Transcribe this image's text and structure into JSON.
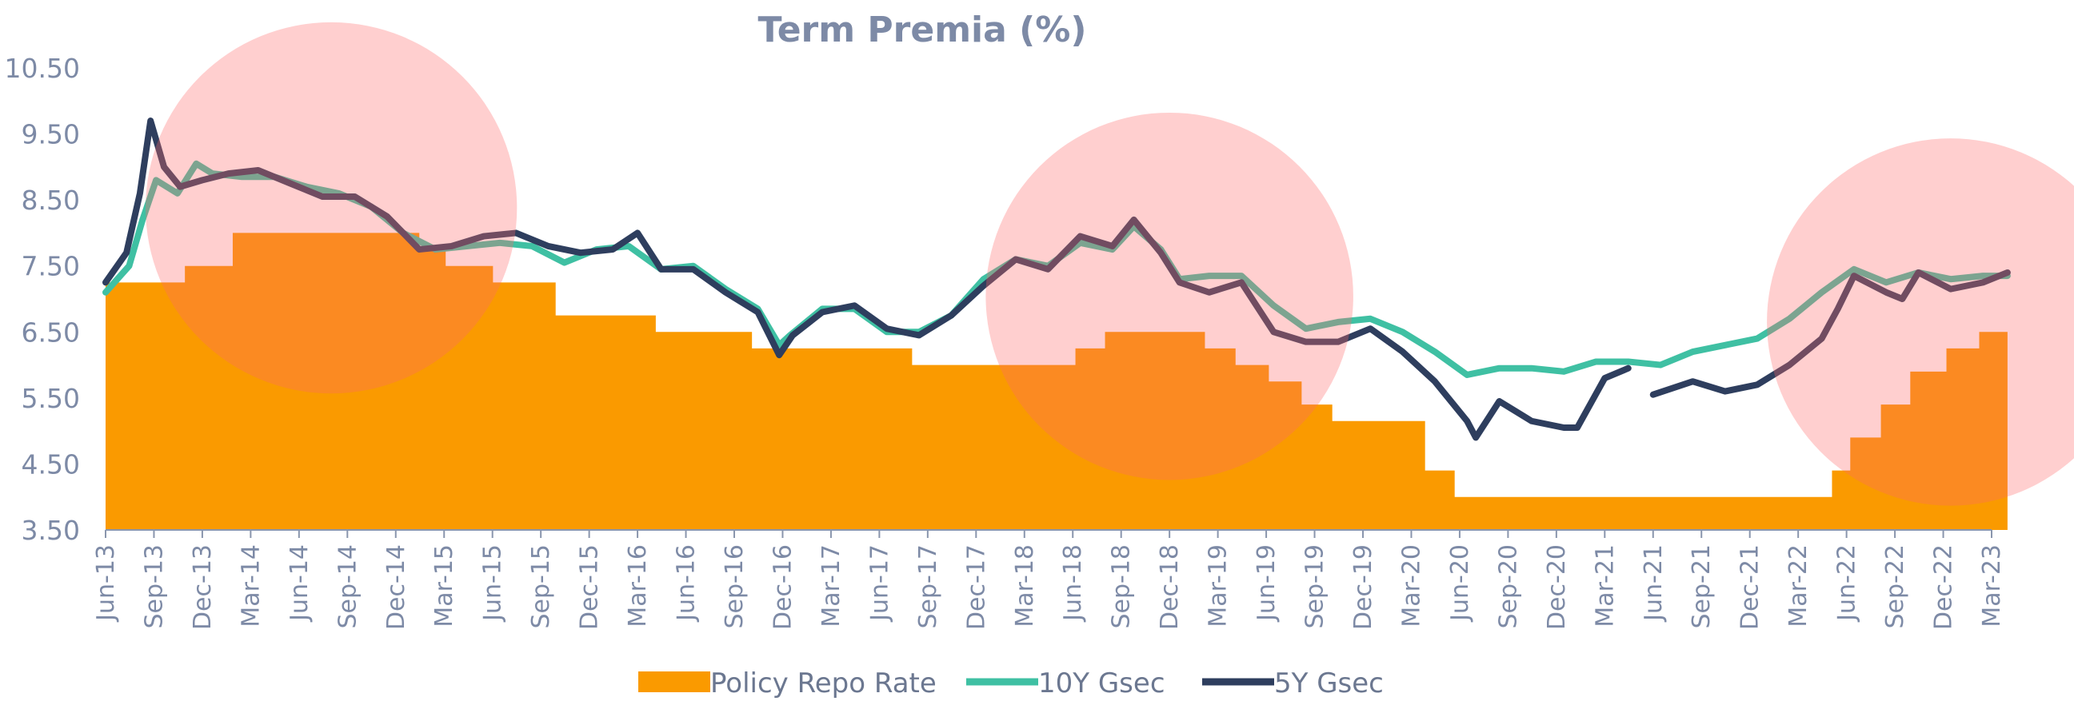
{
  "chart_data": {
    "type": "area",
    "title": "Term Premia (%)",
    "xlabel": "",
    "ylabel": "",
    "ylim": [
      3.5,
      10.5
    ],
    "yticks": [
      "3.50",
      "4.50",
      "5.50",
      "6.50",
      "7.50",
      "8.50",
      "9.50",
      "10.50"
    ],
    "xlim": [
      "2013-06",
      "2023-03"
    ],
    "xticks": [
      "Jun-13",
      "Sep-13",
      "Dec-13",
      "Mar-14",
      "Jun-14",
      "Sep-14",
      "Dec-14",
      "Mar-15",
      "Jun-15",
      "Sep-15",
      "Dec-15",
      "Mar-16",
      "Jun-16",
      "Sep-16",
      "Dec-16",
      "Mar-17",
      "Jun-17",
      "Sep-17",
      "Dec-17",
      "Mar-18",
      "Jun-18",
      "Sep-18",
      "Dec-18",
      "Mar-19",
      "Jun-19",
      "Sep-19",
      "Dec-19",
      "Mar-20",
      "Jun-20",
      "Sep-20",
      "Dec-20",
      "Mar-21",
      "Jun-21",
      "Sep-21",
      "Dec-21",
      "Mar-22",
      "Jun-22",
      "Sep-22",
      "Dec-22",
      "Mar-23"
    ],
    "legend_position": "bottom",
    "grid": false,
    "series": [
      {
        "name": "Policy Repo Rate",
        "kind": "step-area",
        "color": "#fa9a00",
        "points": [
          [
            "2013-06-01",
            7.25
          ],
          [
            "2013-10-29",
            7.5
          ],
          [
            "2014-01-28",
            8.0
          ],
          [
            "2015-01-15",
            7.75
          ],
          [
            "2015-03-04",
            7.5
          ],
          [
            "2015-06-02",
            7.25
          ],
          [
            "2015-09-29",
            6.75
          ],
          [
            "2016-04-05",
            6.5
          ],
          [
            "2016-10-04",
            6.25
          ],
          [
            "2017-08-02",
            6.0
          ],
          [
            "2018-06-06",
            6.25
          ],
          [
            "2018-08-01",
            6.5
          ],
          [
            "2019-02-07",
            6.25
          ],
          [
            "2019-04-04",
            6.0
          ],
          [
            "2019-06-06",
            5.75
          ],
          [
            "2019-08-07",
            5.4
          ],
          [
            "2019-10-04",
            5.15
          ],
          [
            "2020-03-27",
            4.4
          ],
          [
            "2020-05-22",
            4.0
          ],
          [
            "2022-05-04",
            4.4
          ],
          [
            "2022-06-08",
            4.9
          ],
          [
            "2022-08-05",
            5.4
          ],
          [
            "2022-09-30",
            5.9
          ],
          [
            "2022-12-07",
            6.25
          ],
          [
            "2023-02-08",
            6.5
          ],
          [
            "2023-03-31",
            6.5
          ]
        ]
      },
      {
        "name": "10Y Gsec",
        "kind": "line",
        "color": "#3fc0a3",
        "points": [
          [
            "2013-06-01",
            7.1
          ],
          [
            "2013-07-15",
            7.5
          ],
          [
            "2013-08-10",
            8.2
          ],
          [
            "2013-09-05",
            8.8
          ],
          [
            "2013-10-15",
            8.6
          ],
          [
            "2013-11-20",
            9.05
          ],
          [
            "2013-12-20",
            8.9
          ],
          [
            "2014-02-15",
            8.85
          ],
          [
            "2014-04-15",
            8.85
          ],
          [
            "2014-06-15",
            8.7
          ],
          [
            "2014-08-15",
            8.6
          ],
          [
            "2014-10-15",
            8.4
          ],
          [
            "2014-12-15",
            8.0
          ],
          [
            "2015-02-15",
            7.75
          ],
          [
            "2015-04-15",
            7.8
          ],
          [
            "2015-06-15",
            7.85
          ],
          [
            "2015-08-15",
            7.8
          ],
          [
            "2015-10-15",
            7.55
          ],
          [
            "2015-12-15",
            7.75
          ],
          [
            "2016-02-15",
            7.8
          ],
          [
            "2016-04-15",
            7.45
          ],
          [
            "2016-06-15",
            7.5
          ],
          [
            "2016-08-15",
            7.15
          ],
          [
            "2016-10-15",
            6.85
          ],
          [
            "2016-11-25",
            6.3
          ],
          [
            "2016-12-15",
            6.45
          ],
          [
            "2017-02-15",
            6.85
          ],
          [
            "2017-04-15",
            6.85
          ],
          [
            "2017-06-15",
            6.5
          ],
          [
            "2017-08-15",
            6.5
          ],
          [
            "2017-10-15",
            6.75
          ],
          [
            "2017-12-15",
            7.3
          ],
          [
            "2018-02-15",
            7.6
          ],
          [
            "2018-04-15",
            7.5
          ],
          [
            "2018-06-15",
            7.85
          ],
          [
            "2018-08-15",
            7.75
          ],
          [
            "2018-09-25",
            8.1
          ],
          [
            "2018-11-15",
            7.75
          ],
          [
            "2018-12-20",
            7.3
          ],
          [
            "2019-02-15",
            7.35
          ],
          [
            "2019-04-15",
            7.35
          ],
          [
            "2019-06-15",
            6.9
          ],
          [
            "2019-08-15",
            6.55
          ],
          [
            "2019-10-15",
            6.65
          ],
          [
            "2019-12-15",
            6.7
          ],
          [
            "2020-02-15",
            6.5
          ],
          [
            "2020-04-15",
            6.2
          ],
          [
            "2020-06-15",
            5.85
          ],
          [
            "2020-08-15",
            5.95
          ],
          [
            "2020-10-15",
            5.95
          ],
          [
            "2020-12-15",
            5.9
          ],
          [
            "2021-02-15",
            6.05
          ],
          [
            "2021-04-15",
            6.05
          ],
          [
            "2021-06-15",
            6.0
          ],
          [
            "2021-08-15",
            6.2
          ],
          [
            "2021-10-15",
            6.3
          ],
          [
            "2021-12-15",
            6.4
          ],
          [
            "2022-02-15",
            6.7
          ],
          [
            "2022-04-15",
            7.1
          ],
          [
            "2022-06-15",
            7.45
          ],
          [
            "2022-08-15",
            7.25
          ],
          [
            "2022-10-15",
            7.4
          ],
          [
            "2022-12-15",
            7.3
          ],
          [
            "2023-02-15",
            7.35
          ],
          [
            "2023-03-31",
            7.35
          ]
        ]
      },
      {
        "name": "5Y Gsec",
        "kind": "line",
        "color": "#2e3e5e",
        "points": [
          [
            "2013-06-01",
            7.25
          ],
          [
            "2013-07-10",
            7.7
          ],
          [
            "2013-08-05",
            8.6
          ],
          [
            "2013-08-25",
            9.7
          ],
          [
            "2013-09-20",
            9.0
          ],
          [
            "2013-10-20",
            8.7
          ],
          [
            "2013-12-01",
            8.8
          ],
          [
            "2014-01-20",
            8.9
          ],
          [
            "2014-03-15",
            8.95
          ],
          [
            "2014-05-15",
            8.75
          ],
          [
            "2014-07-15",
            8.55
          ],
          [
            "2014-09-15",
            8.55
          ],
          [
            "2014-11-15",
            8.25
          ],
          [
            "2015-01-15",
            7.75
          ],
          [
            "2015-03-15",
            7.8
          ],
          [
            "2015-05-15",
            7.95
          ],
          [
            "2015-07-15",
            8.0
          ],
          [
            "2015-09-15",
            7.8
          ],
          [
            "2015-11-15",
            7.7
          ],
          [
            "2016-01-15",
            7.75
          ],
          [
            "2016-03-01",
            8.0
          ],
          [
            "2016-04-15",
            7.45
          ],
          [
            "2016-06-15",
            7.45
          ],
          [
            "2016-08-15",
            7.1
          ],
          [
            "2016-10-15",
            6.8
          ],
          [
            "2016-11-25",
            6.15
          ],
          [
            "2016-12-20",
            6.45
          ],
          [
            "2017-02-15",
            6.8
          ],
          [
            "2017-04-15",
            6.9
          ],
          [
            "2017-06-15",
            6.55
          ],
          [
            "2017-08-15",
            6.45
          ],
          [
            "2017-10-15",
            6.75
          ],
          [
            "2017-12-15",
            7.2
          ],
          [
            "2018-02-15",
            7.6
          ],
          [
            "2018-04-15",
            7.45
          ],
          [
            "2018-06-15",
            7.95
          ],
          [
            "2018-08-15",
            7.8
          ],
          [
            "2018-09-25",
            8.2
          ],
          [
            "2018-11-15",
            7.7
          ],
          [
            "2018-12-20",
            7.25
          ],
          [
            "2019-02-15",
            7.1
          ],
          [
            "2019-04-15",
            7.25
          ],
          [
            "2019-06-15",
            6.5
          ],
          [
            "2019-08-15",
            6.35
          ],
          [
            "2019-10-15",
            6.35
          ],
          [
            "2019-12-15",
            6.55
          ],
          [
            "2020-02-15",
            6.2
          ],
          [
            "2020-04-15",
            5.75
          ],
          [
            "2020-06-15",
            5.15
          ],
          [
            "2020-07-01",
            4.9
          ],
          [
            "2020-08-15",
            5.45
          ],
          [
            "2020-10-15",
            5.15
          ],
          [
            "2020-12-15",
            5.05
          ],
          [
            "2021-01-10",
            5.05
          ],
          [
            "2021-03-01",
            5.8
          ],
          [
            "2021-04-15",
            5.95
          ],
          [
            "2021-05-31",
            null
          ],
          [
            "2021-06-01",
            5.55
          ],
          [
            "2021-08-15",
            5.75
          ],
          [
            "2021-10-15",
            5.6
          ],
          [
            "2021-12-15",
            5.7
          ],
          [
            "2022-02-15",
            6.0
          ],
          [
            "2022-04-15",
            6.4
          ],
          [
            "2022-05-15",
            6.85
          ],
          [
            "2022-06-15",
            7.35
          ],
          [
            "2022-08-15",
            7.1
          ],
          [
            "2022-09-15",
            7.0
          ],
          [
            "2022-10-15",
            7.4
          ],
          [
            "2022-12-15",
            7.15
          ],
          [
            "2023-02-15",
            7.25
          ],
          [
            "2023-03-31",
            7.4
          ]
        ]
      }
    ],
    "highlights": [
      {
        "center": [
          "2014-08-01",
          8.38
        ],
        "radius_years": 0.96,
        "color": "#ff6b6b"
      },
      {
        "center": [
          "2018-12-01",
          7.04
        ],
        "radius_years": 0.95,
        "color": "#ff6b6b"
      },
      {
        "center": [
          "2022-12-15",
          6.65
        ],
        "radius_years": 0.95,
        "color": "#ff6b6b"
      }
    ]
  }
}
